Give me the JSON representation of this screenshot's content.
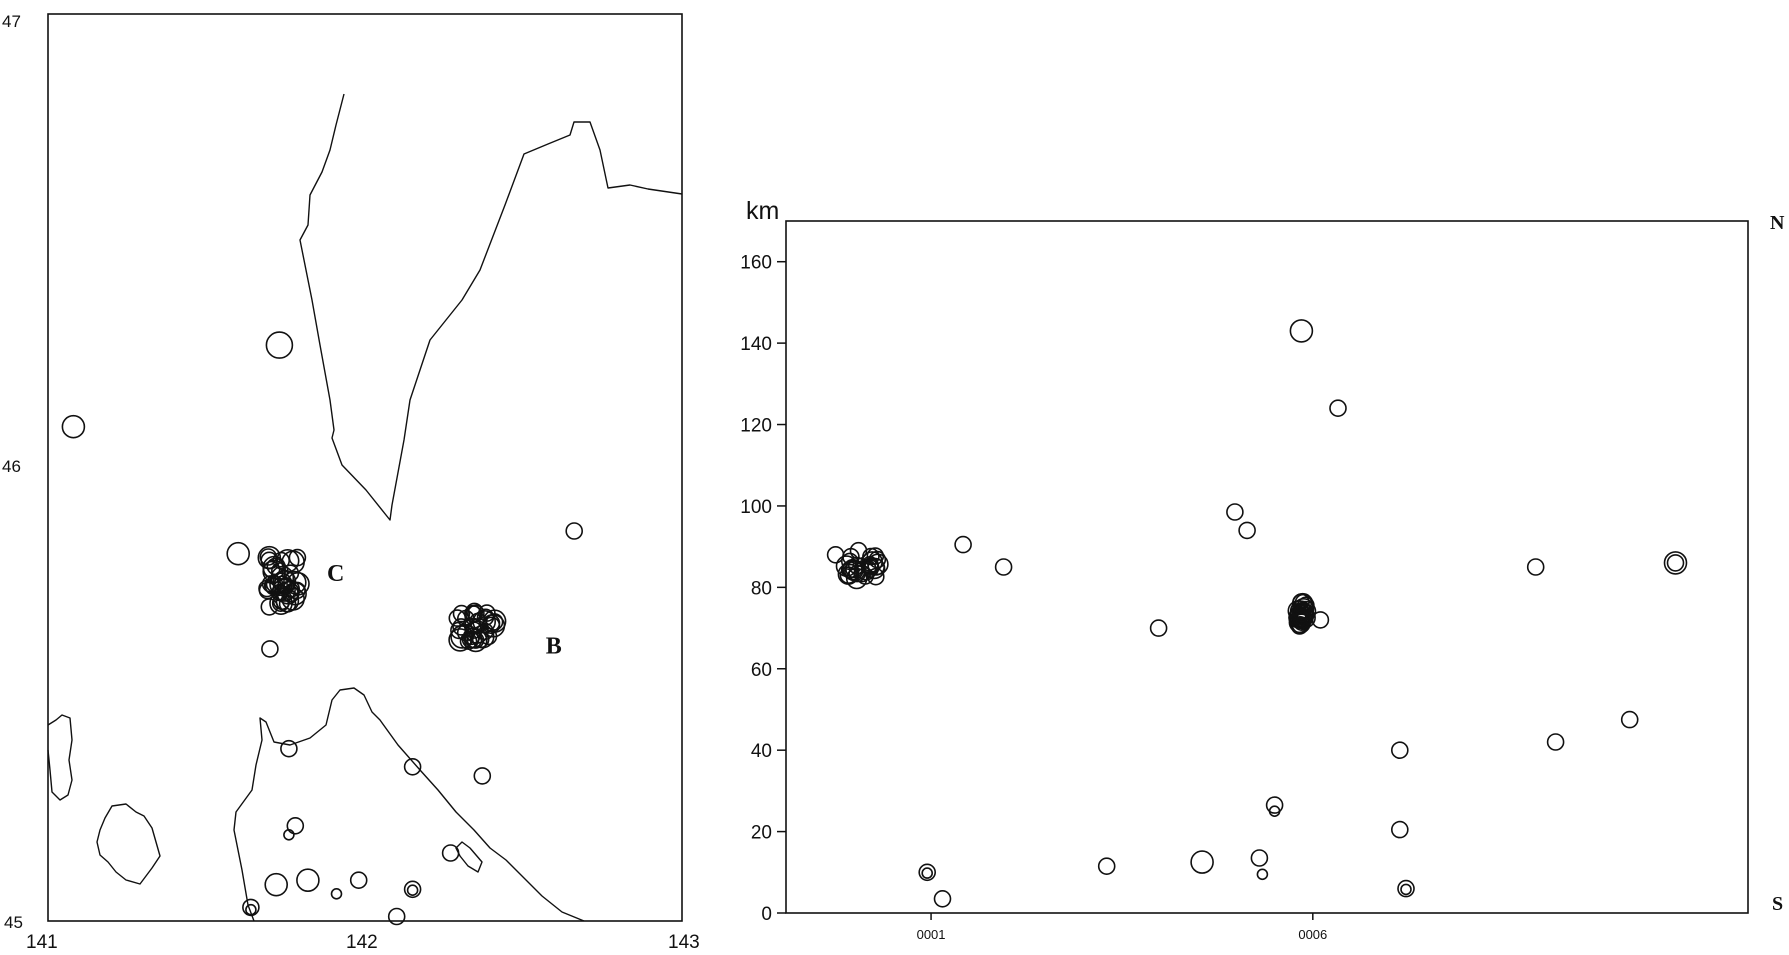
{
  "chart_data": [
    {
      "type": "scatter",
      "panel": "map",
      "x_ticks": [
        "141",
        "142",
        "143"
      ],
      "y_ticks": [
        "45",
        "46",
        "47"
      ],
      "xlim": [
        141,
        143
      ],
      "ylim": [
        45,
        47
      ],
      "cluster_labels": [
        {
          "text": "C",
          "lon": 141.88,
          "lat": 45.77
        },
        {
          "text": "B",
          "lon": 142.57,
          "lat": 45.61
        }
      ],
      "points": [
        {
          "lon": 141.73,
          "lat": 46.27,
          "size": "large"
        },
        {
          "lon": 141.08,
          "lat": 46.09,
          "size": "medium"
        },
        {
          "lon": 142.66,
          "lat": 45.86,
          "size": "small"
        },
        {
          "lon": 141.6,
          "lat": 45.81,
          "size": "medium"
        },
        {
          "lon": 141.7,
          "lat": 45.6,
          "size": "small"
        },
        {
          "lon": 141.76,
          "lat": 45.38,
          "size": "small"
        },
        {
          "lon": 142.15,
          "lat": 45.34,
          "size": "small"
        },
        {
          "lon": 142.37,
          "lat": 45.32,
          "size": "small"
        },
        {
          "lon": 141.78,
          "lat": 45.21,
          "size": "small"
        },
        {
          "lon": 141.76,
          "lat": 45.19,
          "size": "tiny"
        },
        {
          "lon": 142.27,
          "lat": 45.15,
          "size": "small"
        },
        {
          "lon": 141.72,
          "lat": 45.08,
          "size": "medium"
        },
        {
          "lon": 141.82,
          "lat": 45.09,
          "size": "medium"
        },
        {
          "lon": 141.91,
          "lat": 45.06,
          "size": "tiny"
        },
        {
          "lon": 141.98,
          "lat": 45.09,
          "size": "small"
        },
        {
          "lon": 142.15,
          "lat": 45.07,
          "size": "small"
        },
        {
          "lon": 142.15,
          "lat": 45.068,
          "size": "tiny"
        },
        {
          "lon": 141.64,
          "lat": 45.03,
          "size": "small"
        },
        {
          "lon": 141.64,
          "lat": 45.025,
          "size": "tiny"
        },
        {
          "lon": 142.1,
          "lat": 45.01,
          "size": "small"
        }
      ],
      "clusters": [
        {
          "name": "C",
          "lon": 141.74,
          "lat": 45.75,
          "spread_lon": 0.05,
          "spread_lat": 0.06,
          "count": 40
        },
        {
          "name": "B",
          "lon": 142.35,
          "lat": 45.65,
          "spread_lon": 0.06,
          "spread_lat": 0.035,
          "count": 34
        }
      ]
    },
    {
      "type": "scatter",
      "panel": "section",
      "ylabel": "km",
      "y_ticks": [
        0,
        20,
        40,
        60,
        80,
        100,
        120,
        140,
        160
      ],
      "ylim": [
        0,
        170
      ],
      "x_ticks": [
        "0001",
        "0006"
      ],
      "x_tick_values": [
        1,
        6
      ],
      "xlim": [
        -0.9,
        11.7
      ],
      "end_labels": {
        "top": "N",
        "bottom": "S"
      },
      "points": [
        {
          "x": -0.25,
          "y": 88,
          "size": "small"
        },
        {
          "x": 0.05,
          "y": 89,
          "size": "small"
        },
        {
          "x": 0.28,
          "y": 85,
          "size": "small"
        },
        {
          "x": 1.42,
          "y": 90.5,
          "size": "small"
        },
        {
          "x": 1.95,
          "y": 85,
          "size": "small"
        },
        {
          "x": 0.95,
          "y": 10,
          "size": "small"
        },
        {
          "x": 0.95,
          "y": 9.8,
          "size": "tiny"
        },
        {
          "x": 1.15,
          "y": 3.5,
          "size": "small"
        },
        {
          "x": 3.3,
          "y": 11.5,
          "size": "small"
        },
        {
          "x": 3.98,
          "y": 70,
          "size": "small"
        },
        {
          "x": 4.55,
          "y": 12.5,
          "size": "medium"
        },
        {
          "x": 4.98,
          "y": 98.5,
          "size": "small"
        },
        {
          "x": 5.14,
          "y": 94,
          "size": "small"
        },
        {
          "x": 5.3,
          "y": 13.5,
          "size": "small"
        },
        {
          "x": 5.34,
          "y": 9.5,
          "size": "tiny"
        },
        {
          "x": 5.5,
          "y": 26.5,
          "size": "small"
        },
        {
          "x": 5.5,
          "y": 25,
          "size": "tiny"
        },
        {
          "x": 5.85,
          "y": 143,
          "size": "medium"
        },
        {
          "x": 6.1,
          "y": 72,
          "size": "small"
        },
        {
          "x": 6.33,
          "y": 124,
          "size": "small"
        },
        {
          "x": 7.14,
          "y": 40,
          "size": "small"
        },
        {
          "x": 7.14,
          "y": 20.5,
          "size": "small"
        },
        {
          "x": 7.22,
          "y": 6,
          "size": "small"
        },
        {
          "x": 7.22,
          "y": 5.8,
          "size": "tiny"
        },
        {
          "x": 8.92,
          "y": 85,
          "size": "small"
        },
        {
          "x": 9.18,
          "y": 42,
          "size": "small"
        },
        {
          "x": 10.15,
          "y": 47.5,
          "size": "small"
        },
        {
          "x": 10.75,
          "y": 86,
          "size": "medium"
        },
        {
          "x": 10.75,
          "y": 86,
          "size": "small"
        }
      ],
      "clusters": [
        {
          "x": 0.1,
          "y": 85,
          "spread_x": 0.22,
          "spread_y": 3,
          "count": 26
        },
        {
          "x": 5.86,
          "y": 73.5,
          "spread_x": 0.05,
          "spread_y": 3,
          "count": 30
        }
      ]
    }
  ]
}
